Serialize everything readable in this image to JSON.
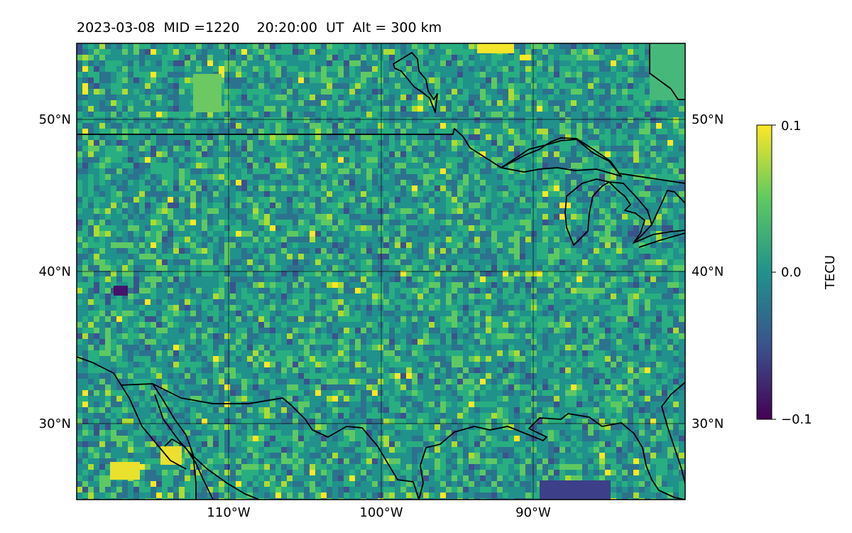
{
  "title": "2023-03-08  MID =1220    20:20:00  UT  Alt = 300 km",
  "map": {
    "lat_range": [
      25,
      55
    ],
    "lon_range": [
      -120,
      -80
    ],
    "lat_ticks": [
      {
        "value": 50,
        "label": "50°N"
      },
      {
        "value": 40,
        "label": "40°N"
      },
      {
        "value": 30,
        "label": "30°N"
      }
    ],
    "lon_ticks": [
      {
        "value": -110,
        "label": "110°W"
      },
      {
        "value": -100,
        "label": "100°W"
      },
      {
        "value": -90,
        "label": "90°W"
      }
    ],
    "grid": true,
    "colormap": "viridis"
  },
  "colorbar": {
    "label": "TECU",
    "min": -0.1,
    "max": 0.1,
    "ticks": [
      {
        "value": 0.1,
        "label": "0.1"
      },
      {
        "value": 0.0,
        "label": "0.0"
      },
      {
        "value": -0.1,
        "label": "−0.1"
      }
    ],
    "stops": [
      "#440154",
      "#3b528b",
      "#21918c",
      "#5ec962",
      "#fde725"
    ]
  }
}
